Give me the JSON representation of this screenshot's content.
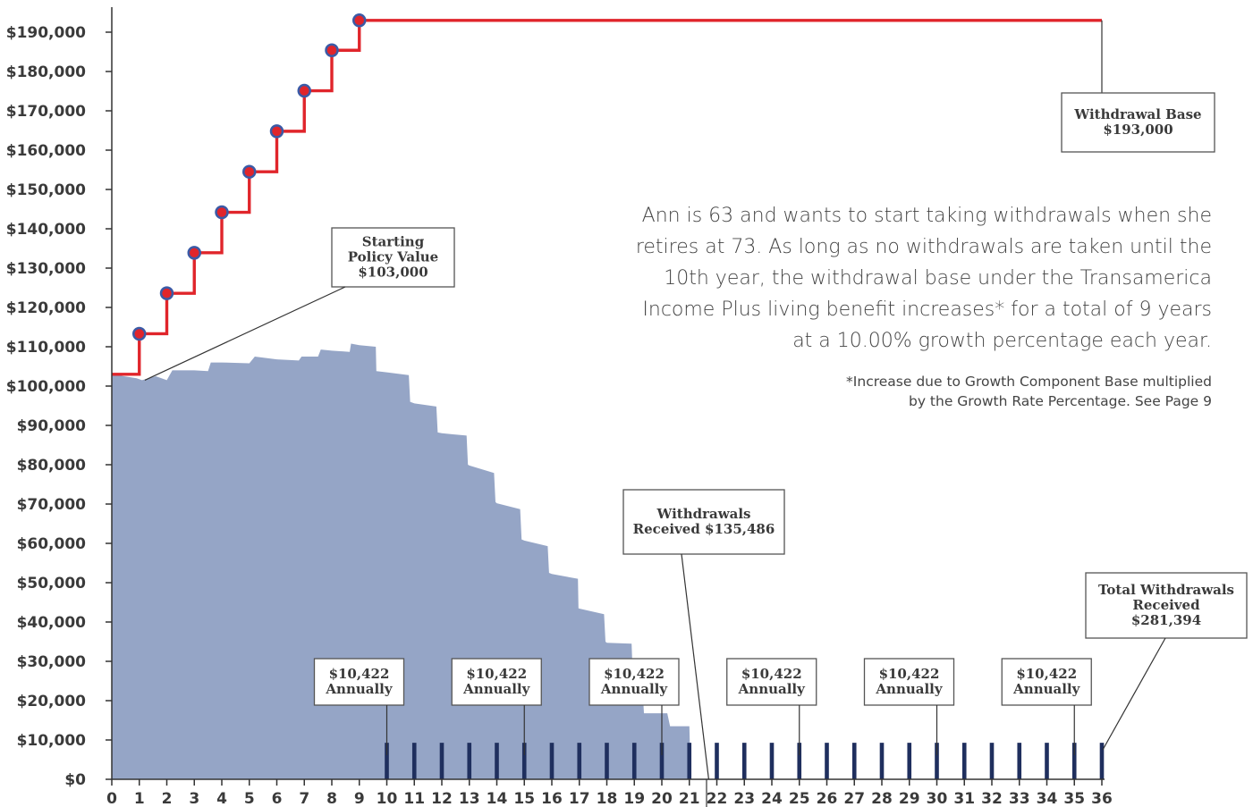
{
  "chart_data": {
    "type": "area",
    "x": [
      0,
      1,
      2,
      3,
      4,
      5,
      6,
      7,
      8,
      9,
      10,
      11,
      12,
      13,
      14,
      15,
      16,
      17,
      18,
      19,
      20,
      21,
      22,
      23,
      24,
      25,
      26,
      27,
      28,
      29,
      30,
      31,
      32,
      33,
      34,
      35,
      36
    ],
    "xlim": [
      0,
      36
    ],
    "ylim": [
      0,
      200000
    ],
    "yticks": [
      0,
      10000,
      20000,
      30000,
      40000,
      50000,
      60000,
      70000,
      80000,
      90000,
      100000,
      110000,
      120000,
      130000,
      140000,
      150000,
      160000,
      170000,
      180000,
      190000
    ],
    "ytick_labels": [
      "$0",
      "$10,000",
      "$20,000",
      "$30,000",
      "$40,000",
      "$50,000",
      "$60,000",
      "$70,000",
      "$80,000",
      "$90,000",
      "$100,000",
      "$110,000",
      "$120,000",
      "$130,000",
      "$140,000",
      "$150,000",
      "$160,000",
      "$170,000",
      "$180,000",
      "$190,000"
    ],
    "series": [
      {
        "kind": "policy-value-area",
        "color": "#95a5c6",
        "points": [
          [
            0,
            103000
          ],
          [
            0.9,
            102000
          ],
          [
            1.1,
            101500
          ],
          [
            1.6,
            102500
          ],
          [
            2,
            101500
          ],
          [
            2.2,
            104000
          ],
          [
            3,
            104000
          ],
          [
            3.5,
            103800
          ],
          [
            3.6,
            106000
          ],
          [
            4,
            106000
          ],
          [
            5,
            105800
          ],
          [
            5.2,
            107500
          ],
          [
            6,
            106800
          ],
          [
            6.8,
            106500
          ],
          [
            6.9,
            107500
          ],
          [
            7.5,
            107500
          ],
          [
            7.6,
            109300
          ],
          [
            8,
            109000
          ],
          [
            8.65,
            108700
          ],
          [
            8.7,
            110800
          ],
          [
            9,
            110400
          ],
          [
            9.6,
            110000
          ],
          [
            9.62,
            103800
          ],
          [
            10,
            103500
          ],
          [
            10.8,
            102800
          ],
          [
            10.85,
            96000
          ],
          [
            11,
            95600
          ],
          [
            11.8,
            94800
          ],
          [
            11.85,
            88200
          ],
          [
            12,
            88000
          ],
          [
            12.9,
            87400
          ],
          [
            12.95,
            80000
          ],
          [
            13,
            79800
          ],
          [
            13.9,
            77900
          ],
          [
            13.95,
            70500
          ],
          [
            14,
            70200
          ],
          [
            14.85,
            68700
          ],
          [
            14.9,
            61000
          ],
          [
            15,
            60700
          ],
          [
            15.85,
            59300
          ],
          [
            15.9,
            52500
          ],
          [
            16,
            52200
          ],
          [
            16.95,
            51000
          ],
          [
            16.97,
            43500
          ],
          [
            17,
            43400
          ],
          [
            17.9,
            42000
          ],
          [
            17.95,
            35000
          ],
          [
            18,
            34700
          ],
          [
            18.9,
            34500
          ],
          [
            18.95,
            25000
          ],
          [
            19,
            24800
          ],
          [
            19.3,
            23000
          ],
          [
            19.35,
            16800
          ],
          [
            20,
            16800
          ],
          [
            20.2,
            16800
          ],
          [
            20.3,
            13500
          ],
          [
            21,
            13500
          ],
          [
            21.05,
            0
          ],
          [
            0,
            0
          ]
        ]
      },
      {
        "kind": "withdrawal-base-step",
        "color": "#e0252b",
        "x": [
          0,
          1,
          2,
          3,
          4,
          5,
          6,
          7,
          8,
          9,
          36
        ],
        "values": [
          103000,
          113300,
          123600,
          133900,
          144200,
          154500,
          164800,
          175100,
          185400,
          193000,
          193000
        ]
      },
      {
        "kind": "annual-withdrawal-ticks",
        "color": "#1f2f5e",
        "x": [
          10,
          11,
          12,
          13,
          14,
          15,
          16,
          17,
          18,
          19,
          20,
          21,
          22,
          23,
          24,
          25,
          26,
          27,
          28,
          29,
          30,
          31,
          32,
          33,
          34,
          35,
          36
        ],
        "values": [
          10422,
          10422,
          10422,
          10422,
          10422,
          10422,
          10422,
          10422,
          10422,
          10422,
          10422,
          10422,
          10422,
          10422,
          10422,
          10422,
          10422,
          10422,
          10422,
          10422,
          10422,
          10422,
          10422,
          10422,
          10422,
          10422,
          10422
        ]
      }
    ],
    "dots_at": [
      1,
      2,
      3,
      4,
      5,
      6,
      7,
      8,
      9
    ],
    "callouts": {
      "starting_policy_value": {
        "lines": [
          "Starting",
          "Policy Value",
          "$103,000"
        ],
        "anchor_x": 1.2,
        "anchor_value": 101500
      },
      "withdrawal_base": {
        "lines": [
          "Withdrawal Base",
          "$193,000"
        ],
        "anchor_x": 35.55,
        "anchor_value": 193000
      },
      "withdrawals_received": {
        "lines": [
          "Withdrawals",
          "Received $135,486"
        ],
        "anchor_x": 21.9,
        "anchor_value": 0
      },
      "total_withdrawals": {
        "lines": [
          "Total Withdrawals",
          "Received",
          "$281,394"
        ],
        "anchor_x": 36,
        "anchor_value": 7500
      },
      "annual": [
        {
          "lines": [
            "$10,422",
            "Annually"
          ],
          "x": 10
        },
        {
          "lines": [
            "$10,422",
            "Annually"
          ],
          "x": 15
        },
        {
          "lines": [
            "$10,422",
            "Annually"
          ],
          "x": 20
        },
        {
          "lines": [
            "$10,422",
            "Annually"
          ],
          "x": 25
        },
        {
          "lines": [
            "$10,422",
            "Annually"
          ],
          "x": 30
        },
        {
          "lines": [
            "$10,422",
            "Annually"
          ],
          "x": 35
        }
      ]
    },
    "colors": {
      "axis": "#333333",
      "line": "#e0252b",
      "dot_outline": "#3b5aa6",
      "area": "#95a5c6",
      "ticks": "#1f2f5e"
    }
  },
  "description": [
    "Ann is 63 and wants to start taking withdrawals when she",
    "retires at 73. As long as no withdrawals are taken until the",
    "10th year, the withdrawal base under the Transamerica",
    "Income Plus living benefit increases* for a total of 9 years",
    "at a 10.00% growth percentage each year."
  ],
  "footnote": [
    "*Increase due to Growth Component Base multiplied",
    "by the Growth Rate Percentage. See Page 9"
  ]
}
